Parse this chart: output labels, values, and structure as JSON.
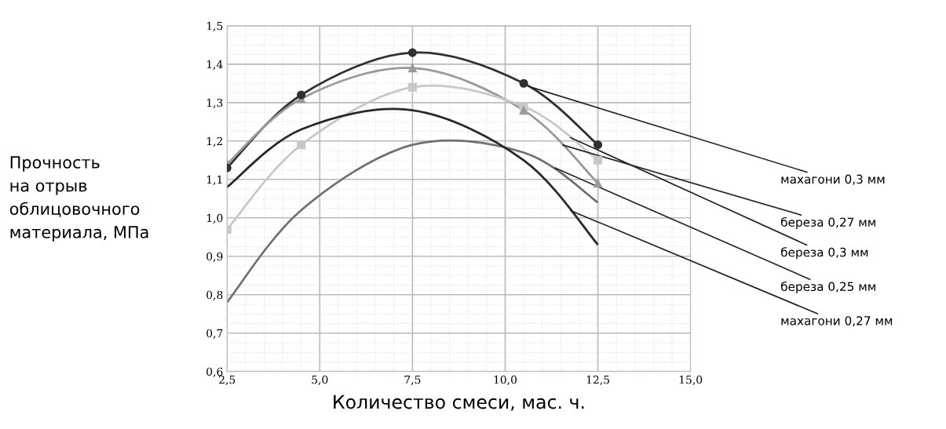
{
  "chart_data": {
    "type": "line",
    "xlabel": "Количество смеси, мас. ч.",
    "ylabel": "Прочность\nна отрыв\nоблицовочного\nматериала, МПа",
    "x": [
      2.5,
      4.5,
      7.5,
      10.5,
      12.5
    ],
    "series": [
      {
        "name": "махагони 0,3 мм",
        "color": "#303030",
        "marker": "circle",
        "values": [
          1.13,
          1.32,
          1.43,
          1.35,
          1.19
        ]
      },
      {
        "name": "береза 0,27 мм",
        "color": "#9a9a9a",
        "marker": "triangle",
        "values": [
          1.14,
          1.31,
          1.39,
          1.28,
          1.09
        ]
      },
      {
        "name": "береза 0,3 мм",
        "color": "#c8c8c8",
        "marker": "square",
        "values": [
          0.97,
          1.19,
          1.34,
          1.29,
          1.15
        ]
      },
      {
        "name": "береза 0,25 мм",
        "color": "#707070",
        "marker": "none",
        "values": [
          0.78,
          1.02,
          1.19,
          1.17,
          1.04
        ]
      },
      {
        "name": "махагони 0,27 мм",
        "color": "#282828",
        "marker": "none",
        "values": [
          1.08,
          1.23,
          1.28,
          1.15,
          0.93
        ]
      }
    ],
    "xlim": [
      2.5,
      15.0
    ],
    "ylim": [
      0.6,
      1.5
    ],
    "xticks": [
      {
        "value": 2.5,
        "label": "2,5"
      },
      {
        "value": 5.0,
        "label": "5,0"
      },
      {
        "value": 7.5,
        "label": "7,5"
      },
      {
        "value": 10.0,
        "label": "10,0"
      },
      {
        "value": 12.5,
        "label": "12,5"
      },
      {
        "value": 15.0,
        "label": "15,0"
      }
    ],
    "yticks": [
      {
        "value": 0.6,
        "label": "0,6"
      },
      {
        "value": 0.7,
        "label": "0,7"
      },
      {
        "value": 0.8,
        "label": "0,8"
      },
      {
        "value": 0.9,
        "label": "0,9"
      },
      {
        "value": 1.0,
        "label": "1,0"
      },
      {
        "value": 1.1,
        "label": "1,1"
      },
      {
        "value": 1.2,
        "label": "1,2"
      },
      {
        "value": 1.3,
        "label": "1,3"
      },
      {
        "value": 1.4,
        "label": "1,4"
      },
      {
        "value": 1.5,
        "label": "1,5"
      }
    ],
    "grid": true,
    "legend": false
  }
}
